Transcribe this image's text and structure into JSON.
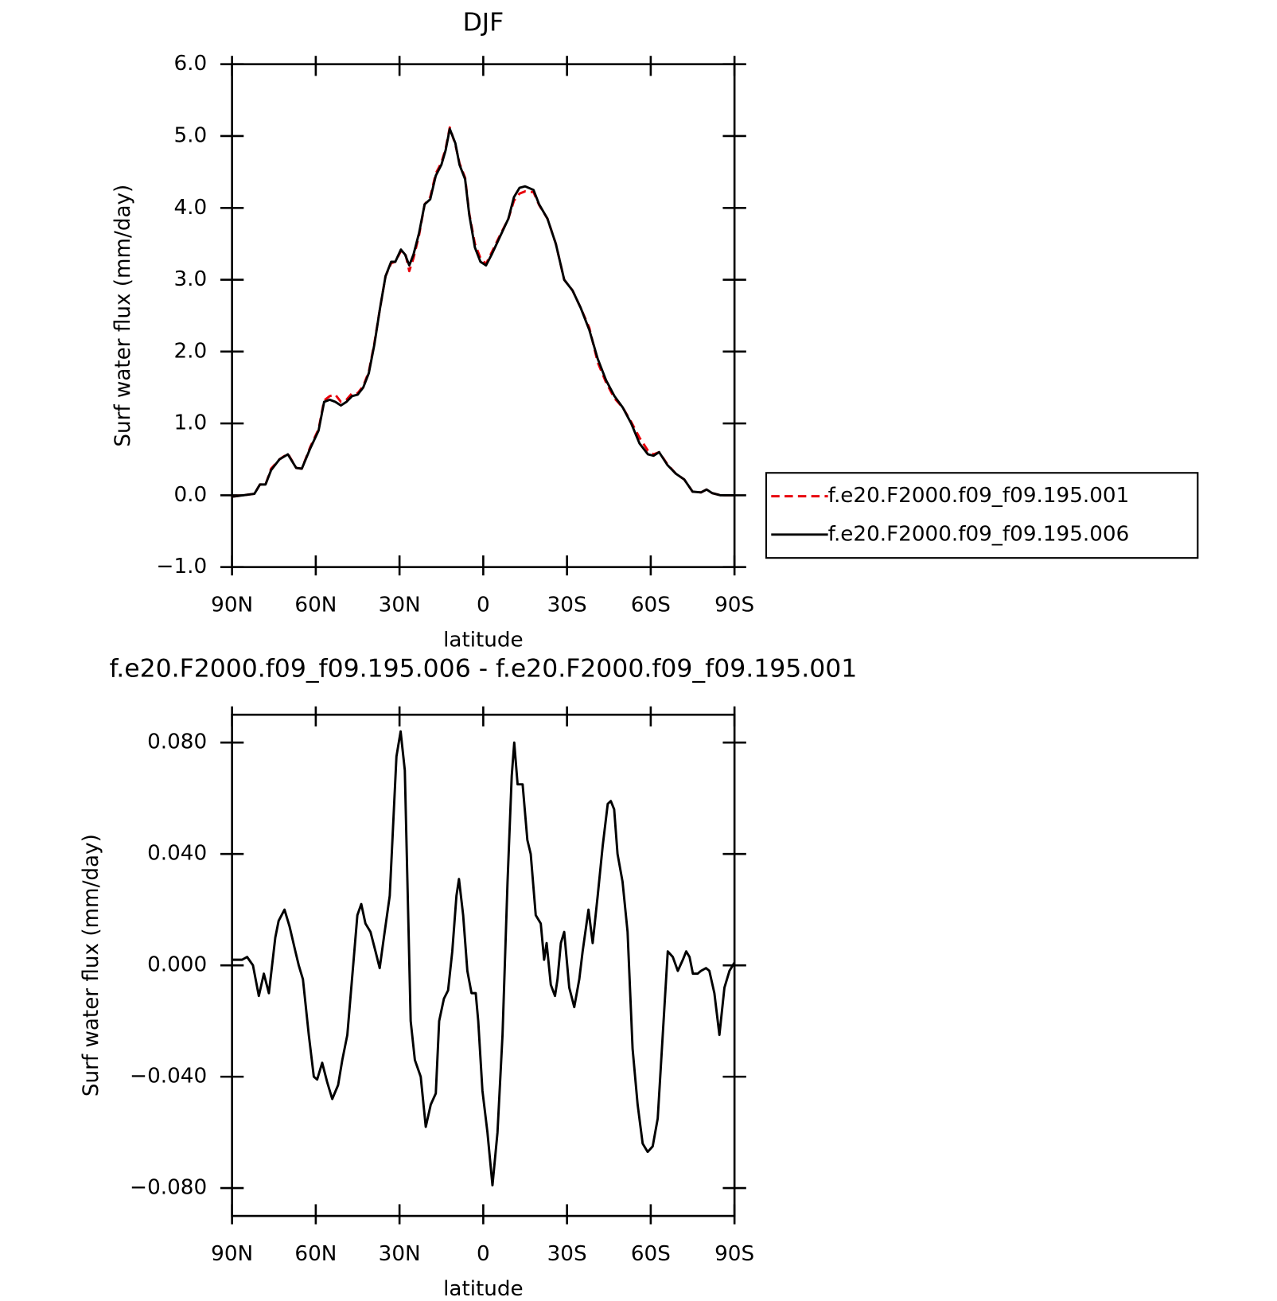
{
  "chart_data": [
    {
      "type": "line",
      "title": "DJF",
      "xlabel": "latitude",
      "ylabel": "Surf water flux (mm/day)",
      "x": [
        90,
        86,
        82,
        80,
        78,
        76,
        73,
        70,
        67,
        65,
        62,
        59,
        57,
        55,
        53,
        51,
        49,
        47,
        45,
        43,
        41,
        39,
        37,
        35,
        33,
        31.5,
        29.5,
        28,
        26.5,
        25,
        23,
        21,
        19,
        17,
        15,
        13.5,
        12,
        10,
        8.5,
        6.5,
        5,
        3,
        1,
        -1,
        -3,
        -6,
        -9,
        -11,
        -13,
        -15,
        -18,
        -20,
        -23,
        -26,
        -29,
        -32,
        -35,
        -38,
        -41,
        -44,
        -47,
        -50,
        -53,
        -56,
        -59,
        -61,
        -63,
        -66,
        -69,
        -72,
        -75,
        -78,
        -80,
        -82,
        -85,
        -90
      ],
      "series": [
        {
          "name": "f.e20.F2000.f09_f09.195.001",
          "color": "#e8000b",
          "dashed": true,
          "values": [
            -0.02,
            0.0,
            0.02,
            0.15,
            0.15,
            0.37,
            0.5,
            0.58,
            0.38,
            0.37,
            0.67,
            0.92,
            1.32,
            1.38,
            1.4,
            1.3,
            1.33,
            1.42,
            1.42,
            1.52,
            1.72,
            2.12,
            2.6,
            3.05,
            3.23,
            3.25,
            3.4,
            3.38,
            3.12,
            3.3,
            3.62,
            4.05,
            4.15,
            4.48,
            4.63,
            4.82,
            5.12,
            4.88,
            4.62,
            4.42,
            3.92,
            3.5,
            3.3,
            3.22,
            3.38,
            3.62,
            3.85,
            4.1,
            4.2,
            4.23,
            4.22,
            4.04,
            3.85,
            3.5,
            3.0,
            2.85,
            2.6,
            2.33,
            1.85,
            1.57,
            1.35,
            1.22,
            1.02,
            0.8,
            0.62,
            0.57,
            0.6,
            0.43,
            0.3,
            0.22,
            0.05,
            0.04,
            0.08,
            0.03,
            0.0,
            0.0
          ]
        },
        {
          "name": "f.e20.F2000.f09_f09.195.006",
          "color": "#000000",
          "dashed": false,
          "values": [
            -0.02,
            0.0,
            0.02,
            0.15,
            0.15,
            0.35,
            0.5,
            0.57,
            0.38,
            0.37,
            0.65,
            0.9,
            1.3,
            1.33,
            1.3,
            1.25,
            1.3,
            1.38,
            1.4,
            1.5,
            1.7,
            2.1,
            2.6,
            3.05,
            3.25,
            3.25,
            3.42,
            3.35,
            3.2,
            3.35,
            3.65,
            4.05,
            4.12,
            4.45,
            4.6,
            4.8,
            5.1,
            4.9,
            4.6,
            4.4,
            3.9,
            3.45,
            3.25,
            3.2,
            3.35,
            3.6,
            3.85,
            4.15,
            4.28,
            4.3,
            4.25,
            4.05,
            3.85,
            3.5,
            3.0,
            2.85,
            2.6,
            2.3,
            1.9,
            1.6,
            1.38,
            1.22,
            1.0,
            0.72,
            0.57,
            0.55,
            0.6,
            0.42,
            0.3,
            0.22,
            0.05,
            0.04,
            0.08,
            0.03,
            0.0,
            0.0
          ]
        }
      ],
      "xlim": [
        90,
        -90
      ],
      "xticks": [
        {
          "value": 90,
          "label": "90N"
        },
        {
          "value": 60,
          "label": "60N"
        },
        {
          "value": 30,
          "label": "30N"
        },
        0,
        {
          "value": -30,
          "label": "30S"
        },
        {
          "value": -60,
          "label": "60S"
        },
        {
          "value": -90,
          "label": "90S"
        }
      ],
      "ylim": [
        -1,
        6
      ],
      "yticks": [
        {
          "value": -1,
          "label": "−1.0"
        },
        {
          "value": 0,
          "label": "0.0"
        },
        {
          "value": 1,
          "label": "1.0"
        },
        {
          "value": 2,
          "label": "2.0"
        },
        {
          "value": 3,
          "label": "3.0"
        },
        {
          "value": 4,
          "label": "4.0"
        },
        {
          "value": 5,
          "label": "5.0"
        },
        {
          "value": 6,
          "label": "6.0"
        }
      ],
      "legend": "right"
    },
    {
      "type": "line",
      "title": "f.e20.F2000.f09_f09.195.006 - f.e20.F2000.f09_f09.195.001",
      "xlabel": "latitude",
      "ylabel": "Surf water flux (mm/day)",
      "x": [
        90,
        86.4,
        84.6,
        82.5,
        80.4,
        78.6,
        76.8,
        74.5,
        73.3,
        71.2,
        69.4,
        67.3,
        66.1,
        64.6,
        62.5,
        60.7,
        59.5,
        57.7,
        55.9,
        54.1,
        52.0,
        50.5,
        48.7,
        46.6,
        45.1,
        43.7,
        42.2,
        40.4,
        38.6,
        37.1,
        35.6,
        33.5,
        31.1,
        29.6,
        28.1,
        26.0,
        24.5,
        22.4,
        20.6,
        18.8,
        17.0,
        15.8,
        14.1,
        12.6,
        11.1,
        9.6,
        8.7,
        7.2,
        5.7,
        4.2,
        2.7,
        1.8,
        0.3,
        -1.5,
        -3.3,
        -5.1,
        -6.9,
        -8.7,
        -10.2,
        -11.1,
        -12.3,
        -14.1,
        -15.8,
        -17.0,
        -18.8,
        -20.6,
        -21.8,
        -22.7,
        -24.2,
        -25.7,
        -26.6,
        -27.8,
        -29.0,
        -30.8,
        -32.6,
        -34.4,
        -35.6,
        -37.7,
        -39.2,
        -41.0,
        -42.8,
        -44.6,
        -45.7,
        -46.9,
        -48.1,
        -49.9,
        -51.7,
        -53.5,
        -55.3,
        -57.1,
        -58.9,
        -60.7,
        -62.5,
        -64.6,
        -66.1,
        -67.9,
        -69.7,
        -71.5,
        -72.7,
        -73.9,
        -75.1,
        -76.8,
        -78.0,
        -79.8,
        -81.0,
        -82.8,
        -84.6,
        -86.4,
        -88.2,
        -90
      ],
      "series": [
        {
          "color": "#000000",
          "dashed": false,
          "values": [
            0.002,
            0.002,
            0.003,
            0.0,
            -0.011,
            -0.003,
            -0.01,
            0.01,
            0.016,
            0.02,
            0.014,
            0.005,
            0.0,
            -0.005,
            -0.025,
            -0.04,
            -0.041,
            -0.035,
            -0.042,
            -0.048,
            -0.043,
            -0.034,
            -0.025,
            0.0,
            0.018,
            0.022,
            0.015,
            0.012,
            0.005,
            -0.001,
            0.01,
            0.025,
            0.075,
            0.084,
            0.07,
            -0.02,
            -0.034,
            -0.04,
            -0.058,
            -0.05,
            -0.046,
            -0.02,
            -0.012,
            -0.009,
            0.005,
            0.025,
            0.031,
            0.018,
            -0.002,
            -0.01,
            -0.01,
            -0.02,
            -0.045,
            -0.06,
            -0.079,
            -0.06,
            -0.025,
            0.03,
            0.068,
            0.08,
            0.065,
            0.065,
            0.045,
            0.04,
            0.018,
            0.015,
            0.002,
            0.008,
            -0.007,
            -0.011,
            -0.005,
            0.008,
            0.012,
            -0.008,
            -0.015,
            -0.005,
            0.005,
            0.02,
            0.008,
            0.025,
            0.043,
            0.058,
            0.059,
            0.056,
            0.04,
            0.03,
            0.012,
            -0.03,
            -0.05,
            -0.064,
            -0.067,
            -0.065,
            -0.055,
            -0.02,
            0.005,
            0.003,
            -0.002,
            0.002,
            0.005,
            0.003,
            -0.003,
            -0.003,
            -0.002,
            -0.001,
            -0.002,
            -0.01,
            -0.025,
            -0.008,
            -0.002,
            0.001
          ]
        }
      ],
      "xlim": [
        90,
        -90
      ],
      "xticks": [
        {
          "value": 90,
          "label": "90N"
        },
        {
          "value": 60,
          "label": "60N"
        },
        {
          "value": 30,
          "label": "30N"
        },
        0,
        {
          "value": -30,
          "label": "30S"
        },
        {
          "value": -60,
          "label": "60S"
        },
        {
          "value": -90,
          "label": "90S"
        }
      ],
      "ylim": [
        -0.09,
        0.09
      ],
      "yticks": [
        {
          "value": -0.08,
          "label": "−0.080"
        },
        {
          "value": -0.04,
          "label": "−0.040"
        },
        {
          "value": 0,
          "label": "0.000"
        },
        {
          "value": 0.04,
          "label": "0.040"
        },
        {
          "value": 0.08,
          "label": "0.080"
        }
      ]
    }
  ]
}
